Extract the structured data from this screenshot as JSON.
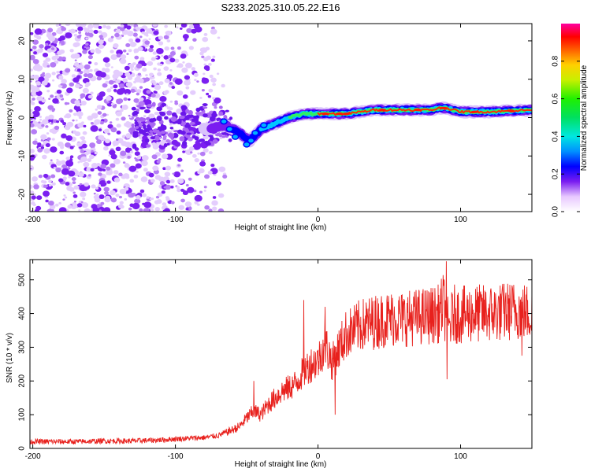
{
  "title": "S233.2025.310.05.22.E16",
  "chart_data": [
    {
      "type": "heatmap",
      "name": "spectrogram",
      "xlabel": "Height of straight line (km)",
      "ylabel": "Frequency (Hz)",
      "xlim": [
        -202,
        150
      ],
      "ylim": [
        -24.5,
        24.5
      ],
      "xticks": [
        -200,
        -100,
        0,
        100
      ],
      "yticks": [
        -20,
        -10,
        0,
        10,
        20
      ],
      "noise_region_x": [
        -202,
        -65
      ],
      "ridge": {
        "x": [
          -75,
          -65,
          -55,
          -48,
          -40,
          -30,
          -20,
          -10,
          0,
          10,
          20,
          40,
          60,
          80,
          85,
          90,
          100,
          120,
          150
        ],
        "freq": [
          -3,
          -2,
          -4,
          -6,
          -3,
          -1.5,
          0,
          1,
          1,
          1,
          1,
          2,
          2,
          2,
          2.5,
          2.5,
          1.5,
          1.5,
          2
        ]
      },
      "colorbar": {
        "label": "Normalized spectral amplitude",
        "range": [
          0,
          1
        ],
        "ticks": [
          0.0,
          0.2,
          0.4,
          0.6,
          0.8
        ],
        "tick_labels": [
          "0.0",
          "0.2",
          "0.4",
          "0.6",
          "0.8"
        ]
      }
    },
    {
      "type": "line",
      "name": "snr",
      "xlabel": "Height of straight line (km)",
      "ylabel": "SNR (10 * v/v)",
      "xlim": [
        -202,
        150
      ],
      "ylim": [
        0,
        560
      ],
      "xticks": [
        -200,
        -100,
        0,
        100
      ],
      "yticks": [
        0,
        100,
        200,
        300,
        400,
        500
      ],
      "color": "#e8211d",
      "series": [
        {
          "name": "SNR",
          "x": [
            -202,
            -190,
            -170,
            -150,
            -130,
            -110,
            -100,
            -90,
            -80,
            -70,
            -60,
            -55,
            -50,
            -45,
            -40,
            -35,
            -30,
            -25,
            -20,
            -15,
            -10,
            -5,
            0,
            5,
            10,
            15,
            20,
            25,
            30,
            40,
            50,
            60,
            70,
            80,
            85,
            88,
            90,
            92,
            95,
            100,
            110,
            120,
            130,
            140,
            150
          ],
          "values": [
            20,
            20,
            20,
            22,
            22,
            25,
            28,
            30,
            32,
            38,
            55,
            65,
            90,
            110,
            100,
            130,
            150,
            170,
            180,
            195,
            230,
            250,
            260,
            310,
            255,
            300,
            340,
            350,
            365,
            375,
            385,
            385,
            390,
            395,
            400,
            430,
            380,
            360,
            400,
            395,
            400,
            400,
            405,
            410,
            400
          ]
        }
      ],
      "spikes": [
        {
          "x": -45,
          "value": 200
        },
        {
          "x": -10,
          "value": 440
        },
        {
          "x": 5,
          "value": 420
        },
        {
          "x": 12,
          "value": 100
        },
        {
          "x": 90,
          "value": 555
        },
        {
          "x": 90.5,
          "value": 205
        },
        {
          "x": 143,
          "value": 275
        },
        {
          "x": 147,
          "value": 440
        }
      ]
    }
  ]
}
